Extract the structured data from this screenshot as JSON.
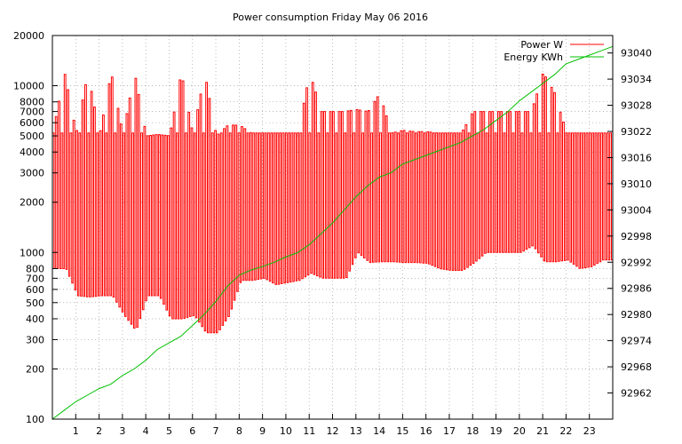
{
  "chart_data": {
    "type": "line",
    "title": "Power consumption Friday May 06 2016",
    "x_unit_note": "hour of day",
    "xlim": [
      0,
      24
    ],
    "x_ticks": [
      1,
      2,
      3,
      4,
      5,
      6,
      7,
      8,
      9,
      10,
      11,
      12,
      13,
      14,
      15,
      16,
      17,
      18,
      19,
      20,
      21,
      22,
      23
    ],
    "y_left": {
      "scale": "log",
      "ylim": [
        100,
        20000
      ],
      "ticks": [
        100,
        200,
        300,
        400,
        500,
        600,
        700,
        800,
        1000,
        2000,
        3000,
        4000,
        5000,
        6000,
        7000,
        8000,
        10000,
        20000
      ]
    },
    "y_right": {
      "scale": "linear",
      "ylim": [
        92956,
        93044
      ],
      "ticks": [
        92962,
        92968,
        92974,
        92980,
        92986,
        92992,
        92998,
        93004,
        93010,
        93016,
        93022,
        93028,
        93034,
        93040
      ]
    },
    "legend_position": "top-right",
    "grid": true,
    "colors": {
      "power": "#ff0000",
      "energy": "#00c000"
    },
    "series": [
      {
        "name": "Power W",
        "axis": "left",
        "x": [
          0,
          0.5,
          1.0,
          1.5,
          2.0,
          2.5,
          3.0,
          3.5,
          4.0,
          4.5,
          5.0,
          5.5,
          6.0,
          6.5,
          7.0,
          7.5,
          8.0,
          8.5,
          9.0,
          9.5,
          10.0,
          10.5,
          11.0,
          11.5,
          12.0,
          12.5,
          13.0,
          13.5,
          14.0,
          14.5,
          15.0,
          15.5,
          16.0,
          16.5,
          17.0,
          17.5,
          18.0,
          18.5,
          19.0,
          19.5,
          20.0,
          20.5,
          21.0,
          21.5,
          22.0,
          22.5,
          23.0,
          23.5,
          24.0
        ],
        "y_high": [
          5200,
          12000,
          5200,
          12000,
          5100,
          12000,
          5100,
          12000,
          5000,
          5100,
          5000,
          12000,
          5100,
          12000,
          5000,
          5800,
          5800,
          5200,
          5200,
          5200,
          5200,
          5200,
          12000,
          7000,
          7000,
          7000,
          7200,
          7000,
          9000,
          5200,
          5400,
          5300,
          5300,
          5200,
          5200,
          5200,
          7000,
          7000,
          7000,
          7000,
          7000,
          7000,
          12000,
          9000,
          5200,
          5200,
          5200,
          5200,
          5200
        ],
        "y_low": [
          800,
          800,
          550,
          540,
          550,
          550,
          420,
          340,
          550,
          550,
          400,
          400,
          420,
          330,
          330,
          420,
          680,
          680,
          700,
          640,
          660,
          680,
          750,
          700,
          700,
          700,
          1000,
          870,
          880,
          880,
          870,
          870,
          860,
          800,
          780,
          780,
          870,
          1000,
          1000,
          1000,
          1000,
          1100,
          880,
          880,
          900,
          800,
          820,
          900,
          900
        ]
      },
      {
        "name": "Energy KWh",
        "axis": "right",
        "x": [
          0,
          0.5,
          1.0,
          1.5,
          2.0,
          2.5,
          3.0,
          3.5,
          4.0,
          4.5,
          5.0,
          5.5,
          6.0,
          6.5,
          7.0,
          7.5,
          8.0,
          8.5,
          9.0,
          9.5,
          10.0,
          10.5,
          11.0,
          11.5,
          12.0,
          12.5,
          13.0,
          13.5,
          14.0,
          14.5,
          15.0,
          15.5,
          16.0,
          16.5,
          17.0,
          17.5,
          18.0,
          18.5,
          19.0,
          19.5,
          20.0,
          20.5,
          21.0,
          21.5,
          22.0,
          22.5,
          23.0,
          23.5,
          24.0
        ],
        "y": [
          92956,
          92958,
          92960,
          92961.5,
          92963,
          92964,
          92966,
          92967.5,
          92969.5,
          92972,
          92973.5,
          92975,
          92977.5,
          92980,
          92983,
          92986.5,
          92989,
          92990.2,
          92991,
          92992,
          92993.2,
          92994.2,
          92996,
          92998.5,
          93001,
          93004,
          93007,
          93009.5,
          93011.5,
          93012.5,
          93014.5,
          93015.5,
          93016.5,
          93017.5,
          93018.5,
          93019.5,
          93021,
          93022.5,
          93024.5,
          93026.5,
          93029,
          93031,
          93033,
          93035,
          93037.5,
          93038.5,
          93039.5,
          93040.5,
          93041.5
        ]
      }
    ]
  }
}
